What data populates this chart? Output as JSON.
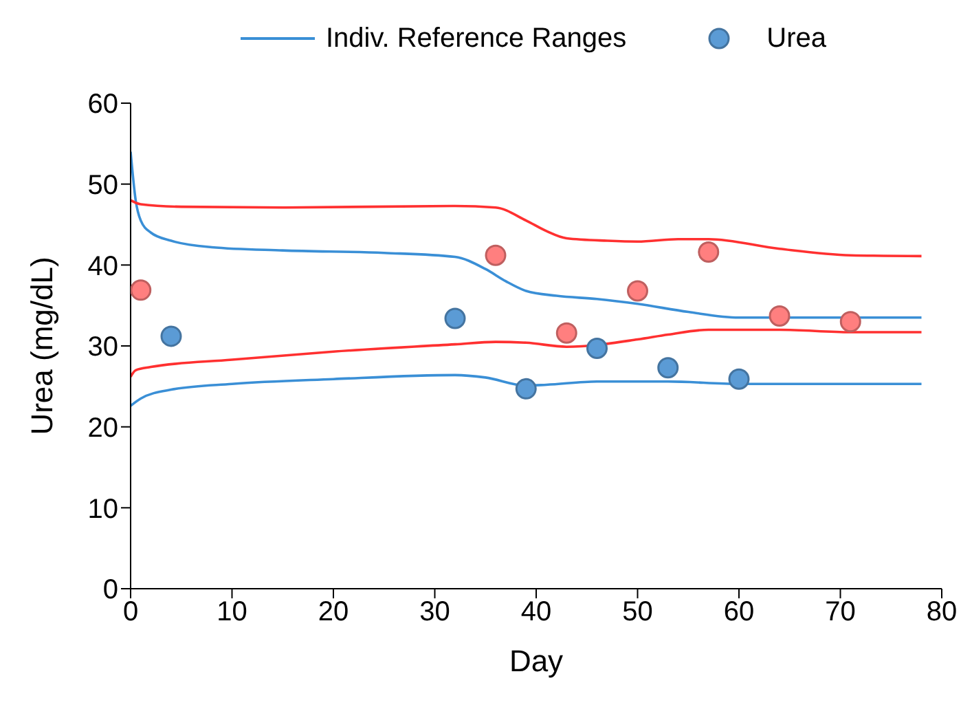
{
  "chart_data": {
    "type": "line",
    "xlabel": "Day",
    "ylabel": "Urea (mg/dL)",
    "xlim": [
      0,
      80
    ],
    "xticks": [
      0,
      10,
      20,
      30,
      40,
      50,
      60,
      70,
      80
    ],
    "ylim": [
      0,
      60
    ],
    "yticks": [
      0,
      10,
      20,
      30,
      40,
      50,
      60
    ],
    "legend": "top",
    "line_style": "solid",
    "series": [
      {
        "name": "Indiv. Reference Ranges",
        "marker": "none",
        "color": "#3a8fd6",
        "x": [
          0,
          0.5,
          1,
          2,
          4,
          8,
          15,
          25,
          32,
          35,
          37,
          39,
          42,
          46,
          50,
          55,
          60,
          78
        ],
        "values": [
          54,
          48,
          45.5,
          44,
          43,
          42.2,
          41.8,
          41.5,
          41,
          39.5,
          38,
          36.8,
          36.2,
          35.8,
          35.2,
          34.2,
          33.5,
          33.5
        ]
      },
      {
        "marker": "none",
        "color": "#3a8fd6",
        "x": [
          0,
          1,
          4,
          10,
          20,
          32,
          35,
          39,
          41,
          46,
          53,
          60,
          78
        ],
        "values": [
          22.6,
          23.5,
          24.6,
          25.3,
          25.9,
          26.4,
          26.1,
          25.1,
          25.2,
          25.6,
          25.6,
          25.3,
          25.3
        ]
      },
      {
        "marker": "none",
        "color": "#ff3030",
        "x": [
          0,
          1,
          5,
          15,
          32,
          36,
          39,
          41,
          43,
          47,
          50,
          54,
          57,
          64,
          71,
          78
        ],
        "values": [
          48,
          47.5,
          47.2,
          47.1,
          47.3,
          47.1,
          45.5,
          44.2,
          43.3,
          43,
          42.9,
          43.2,
          43.2,
          42,
          41.2,
          41.1
        ]
      },
      {
        "marker": "none",
        "color": "#ff3030",
        "x": [
          0,
          0.5,
          2,
          10,
          20,
          32,
          36,
          39,
          43,
          50,
          53,
          57,
          64,
          71,
          78
        ],
        "values": [
          26.2,
          27,
          27.4,
          28.3,
          29.3,
          30.2,
          30.5,
          30.4,
          29.9,
          30.8,
          31.4,
          32,
          32,
          31.7,
          31.7
        ]
      },
      {
        "name": "Urea",
        "type": "scatter",
        "marker": "circle",
        "color": "#5b9bd5",
        "x": [
          4,
          32,
          39,
          46,
          53,
          60
        ],
        "values": [
          31.2,
          33.4,
          24.7,
          29.7,
          27.3,
          25.9
        ]
      },
      {
        "type": "scatter",
        "marker": "circle",
        "color": "#ff7f7f",
        "x": [
          1,
          36,
          43,
          50,
          57,
          64,
          71
        ],
        "values": [
          36.9,
          41.2,
          31.6,
          36.8,
          41.6,
          33.7,
          33.0
        ]
      }
    ]
  }
}
